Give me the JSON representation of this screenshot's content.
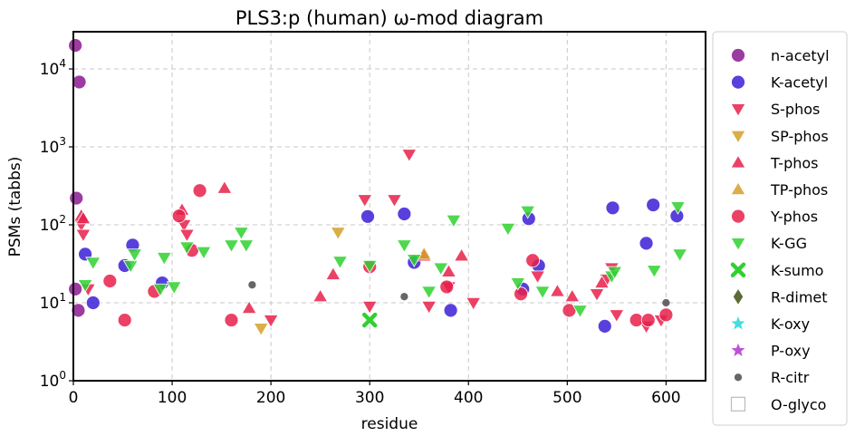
{
  "chart_data": {
    "type": "scatter",
    "title": "PLS3:p (human) ω-mod diagram",
    "xlabel": "residue",
    "ylabel": "PSMs (tabbs)",
    "xlim": [
      0,
      640
    ],
    "ylim": [
      1,
      30000
    ],
    "yscale": "log",
    "grid": true,
    "legend_position": "right-outside",
    "x_ticks": [
      0,
      100,
      200,
      300,
      400,
      500,
      600
    ],
    "x_tick_labels": [
      "0",
      "100",
      "200",
      "300",
      "400",
      "500",
      "600"
    ],
    "y_ticks": [
      1,
      10,
      100,
      1000,
      10000
    ],
    "y_tick_labels": [
      {
        "base": "10",
        "exp": "0"
      },
      {
        "base": "10",
        "exp": "1"
      },
      {
        "base": "10",
        "exp": "2"
      },
      {
        "base": "10",
        "exp": "3"
      },
      {
        "base": "10",
        "exp": "4"
      }
    ],
    "series": [
      {
        "name": "n-acetyl",
        "marker": "circle",
        "color": "#8b1a8f",
        "points": [
          [
            2,
            20000
          ],
          [
            6,
            6800
          ],
          [
            3,
            220
          ],
          [
            2,
            15
          ],
          [
            5,
            8
          ]
        ]
      },
      {
        "name": "K-acetyl",
        "marker": "circle",
        "color": "#3b1fd6",
        "points": [
          [
            12,
            42
          ],
          [
            20,
            10
          ],
          [
            52,
            30
          ],
          [
            60,
            55
          ],
          [
            90,
            18
          ],
          [
            298,
            128
          ],
          [
            335,
            138
          ],
          [
            345,
            33
          ],
          [
            382,
            8
          ],
          [
            455,
            15
          ],
          [
            461,
            120
          ],
          [
            471,
            30
          ],
          [
            538,
            5
          ],
          [
            546,
            165
          ],
          [
            580,
            58
          ],
          [
            587,
            180
          ],
          [
            611,
            130
          ]
        ]
      },
      {
        "name": "S-phos",
        "marker": "triangle-down",
        "color": "#e8204a",
        "points": [
          [
            8,
            100
          ],
          [
            10,
            75
          ],
          [
            15,
            15
          ],
          [
            112,
            100
          ],
          [
            115,
            75
          ],
          [
            200,
            6
          ],
          [
            295,
            210
          ],
          [
            300,
            9
          ],
          [
            325,
            210
          ],
          [
            340,
            800
          ],
          [
            360,
            9
          ],
          [
            380,
            16
          ],
          [
            405,
            10
          ],
          [
            470,
            22
          ],
          [
            530,
            13
          ],
          [
            540,
            20
          ],
          [
            545,
            28
          ],
          [
            550,
            7
          ],
          [
            580,
            5
          ],
          [
            595,
            6
          ]
        ]
      },
      {
        "name": "SP-phos",
        "marker": "triangle-down",
        "color": "#d4a028",
        "points": [
          [
            190,
            4.7
          ],
          [
            268,
            80
          ]
        ]
      },
      {
        "name": "T-phos",
        "marker": "triangle-up",
        "color": "#e8204a",
        "points": [
          [
            8,
            130
          ],
          [
            10,
            120
          ],
          [
            110,
            155
          ],
          [
            153,
            295
          ],
          [
            178,
            8.5
          ],
          [
            250,
            12
          ],
          [
            263,
            23
          ],
          [
            355,
            40
          ],
          [
            380,
            25
          ],
          [
            393,
            40
          ],
          [
            490,
            14
          ],
          [
            505,
            12
          ],
          [
            535,
            18
          ]
        ]
      },
      {
        "name": "TP-phos",
        "marker": "triangle-up",
        "color": "#d4a028",
        "points": [
          [
            355,
            42
          ]
        ]
      },
      {
        "name": "Y-phos",
        "marker": "circle",
        "color": "#e8204a",
        "points": [
          [
            37,
            19
          ],
          [
            52,
            6
          ],
          [
            82,
            14
          ],
          [
            107,
            130
          ],
          [
            120,
            47
          ],
          [
            128,
            275
          ],
          [
            160,
            6
          ],
          [
            300,
            29
          ],
          [
            378,
            16
          ],
          [
            453,
            13
          ],
          [
            465,
            35
          ],
          [
            502,
            8
          ],
          [
            570,
            6
          ],
          [
            582,
            6
          ],
          [
            600,
            7
          ]
        ]
      },
      {
        "name": "K-GG",
        "marker": "triangle-down",
        "color": "#2fd12f",
        "points": [
          [
            12,
            17
          ],
          [
            20,
            33
          ],
          [
            58,
            30
          ],
          [
            62,
            42
          ],
          [
            88,
            15
          ],
          [
            92,
            38
          ],
          [
            102,
            16
          ],
          [
            115,
            52
          ],
          [
            132,
            45
          ],
          [
            160,
            55
          ],
          [
            170,
            80
          ],
          [
            175,
            55
          ],
          [
            270,
            34
          ],
          [
            300,
            30
          ],
          [
            335,
            55
          ],
          [
            345,
            36
          ],
          [
            360,
            14
          ],
          [
            372,
            28
          ],
          [
            385,
            115
          ],
          [
            440,
            90
          ],
          [
            460,
            150
          ],
          [
            475,
            14
          ],
          [
            450,
            18
          ],
          [
            513,
            8
          ],
          [
            545,
            22
          ],
          [
            548,
            25
          ],
          [
            588,
            26
          ],
          [
            612,
            170
          ],
          [
            614,
            42
          ]
        ]
      },
      {
        "name": "K-sumo",
        "marker": "x",
        "color": "#2fd12f",
        "points": [
          [
            300,
            6
          ]
        ]
      },
      {
        "name": "R-dimet",
        "marker": "diamond",
        "color": "#4a5a20",
        "points": []
      },
      {
        "name": "K-oxy",
        "marker": "star",
        "color": "#2fd9d9",
        "points": []
      },
      {
        "name": "P-oxy",
        "marker": "star",
        "color": "#b83fcf",
        "points": []
      },
      {
        "name": "R-citr",
        "marker": "dot",
        "color": "#555555",
        "points": [
          [
            181,
            17
          ],
          [
            335,
            12
          ],
          [
            600,
            10
          ]
        ]
      },
      {
        "name": "O-glyco",
        "marker": "square-open",
        "color": "#bbbbbb",
        "points": []
      }
    ]
  }
}
